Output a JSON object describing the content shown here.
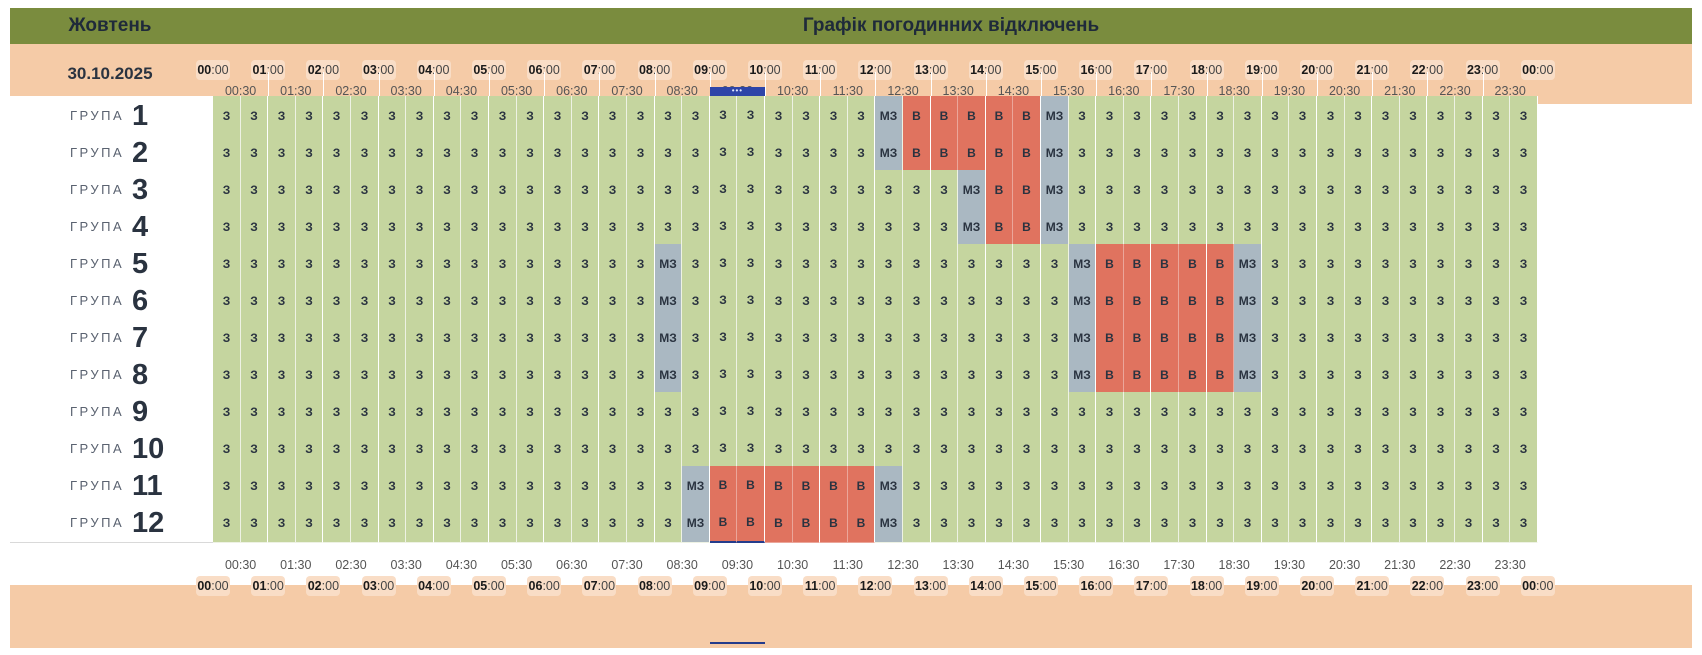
{
  "header": {
    "month": "Жовтень",
    "title": "Графік погодинних відключень",
    "date": "30.10.2025"
  },
  "timeline": {
    "hours": [
      "00",
      "01",
      "02",
      "03",
      "04",
      "05",
      "06",
      "07",
      "08",
      "09",
      "10",
      "11",
      "12",
      "13",
      "14",
      "15",
      "16",
      "17",
      "18",
      "19",
      "20",
      "21",
      "22",
      "23",
      "00"
    ],
    "minute_suffix": ":00",
    "half_hours": [
      "00:30",
      "01:30",
      "02:30",
      "03:30",
      "04:30",
      "05:30",
      "06:30",
      "07:30",
      "08:30",
      "09:30",
      "10:30",
      "11:30",
      "12:30",
      "13:30",
      "14:30",
      "15:30",
      "16:30",
      "17:30",
      "18:30",
      "19:30",
      "20:30",
      "21:30",
      "22:30",
      "23:30"
    ],
    "current_marker": "•••",
    "current_slots": [
      18,
      19
    ]
  },
  "group_word": "ГРУПА",
  "legend_codes": {
    "z": "З",
    "mz": "МЗ",
    "v": "В"
  },
  "groups": [
    {
      "number": "1",
      "segments": [
        {
          "state": "z",
          "count": 24
        },
        {
          "state": "mz",
          "count": 1
        },
        {
          "state": "v",
          "count": 5
        },
        {
          "state": "mz",
          "count": 1
        },
        {
          "state": "z",
          "count": 17
        }
      ]
    },
    {
      "number": "2",
      "segments": [
        {
          "state": "z",
          "count": 24
        },
        {
          "state": "mz",
          "count": 1
        },
        {
          "state": "v",
          "count": 5
        },
        {
          "state": "mz",
          "count": 1
        },
        {
          "state": "z",
          "count": 17
        }
      ]
    },
    {
      "number": "3",
      "segments": [
        {
          "state": "z",
          "count": 27
        },
        {
          "state": "mz",
          "count": 1
        },
        {
          "state": "v",
          "count": 2
        },
        {
          "state": "mz",
          "count": 1
        },
        {
          "state": "z",
          "count": 17
        }
      ]
    },
    {
      "number": "4",
      "segments": [
        {
          "state": "z",
          "count": 27
        },
        {
          "state": "mz",
          "count": 1
        },
        {
          "state": "v",
          "count": 2
        },
        {
          "state": "mz",
          "count": 1
        },
        {
          "state": "z",
          "count": 17
        }
      ]
    },
    {
      "number": "5",
      "segments": [
        {
          "state": "z",
          "count": 16
        },
        {
          "state": "mz",
          "count": 1
        },
        {
          "state": "z",
          "count": 14
        },
        {
          "state": "mz",
          "count": 1
        },
        {
          "state": "v",
          "count": 5
        },
        {
          "state": "mz",
          "count": 1
        },
        {
          "state": "z",
          "count": 10
        }
      ]
    },
    {
      "number": "6",
      "segments": [
        {
          "state": "z",
          "count": 16
        },
        {
          "state": "mz",
          "count": 1
        },
        {
          "state": "z",
          "count": 14
        },
        {
          "state": "mz",
          "count": 1
        },
        {
          "state": "v",
          "count": 5
        },
        {
          "state": "mz",
          "count": 1
        },
        {
          "state": "z",
          "count": 10
        }
      ]
    },
    {
      "number": "7",
      "segments": [
        {
          "state": "z",
          "count": 16
        },
        {
          "state": "mz",
          "count": 1
        },
        {
          "state": "z",
          "count": 14
        },
        {
          "state": "mz",
          "count": 1
        },
        {
          "state": "v",
          "count": 5
        },
        {
          "state": "mz",
          "count": 1
        },
        {
          "state": "z",
          "count": 10
        }
      ]
    },
    {
      "number": "8",
      "segments": [
        {
          "state": "z",
          "count": 16
        },
        {
          "state": "mz",
          "count": 1
        },
        {
          "state": "z",
          "count": 14
        },
        {
          "state": "mz",
          "count": 1
        },
        {
          "state": "v",
          "count": 5
        },
        {
          "state": "mz",
          "count": 1
        },
        {
          "state": "z",
          "count": 10
        }
      ]
    },
    {
      "number": "9",
      "segments": [
        {
          "state": "z",
          "count": 48
        }
      ]
    },
    {
      "number": "10",
      "segments": [
        {
          "state": "z",
          "count": 48
        }
      ]
    },
    {
      "number": "11",
      "segments": [
        {
          "state": "z",
          "count": 17
        },
        {
          "state": "mz",
          "count": 1
        },
        {
          "state": "v",
          "count": 6
        },
        {
          "state": "mz",
          "count": 1
        },
        {
          "state": "z",
          "count": 23
        }
      ]
    },
    {
      "number": "12",
      "segments": [
        {
          "state": "z",
          "count": 17
        },
        {
          "state": "mz",
          "count": 1
        },
        {
          "state": "v",
          "count": 6
        },
        {
          "state": "mz",
          "count": 1
        },
        {
          "state": "z",
          "count": 23
        }
      ]
    }
  ],
  "colors": {
    "header_green": "#7a8c3e",
    "band_peach": "#f5cba7",
    "power_on": "#c5d59f",
    "maybe_off": "#aab8c2",
    "power_off": "#e0735f",
    "current_marker": "#2e45a8"
  }
}
